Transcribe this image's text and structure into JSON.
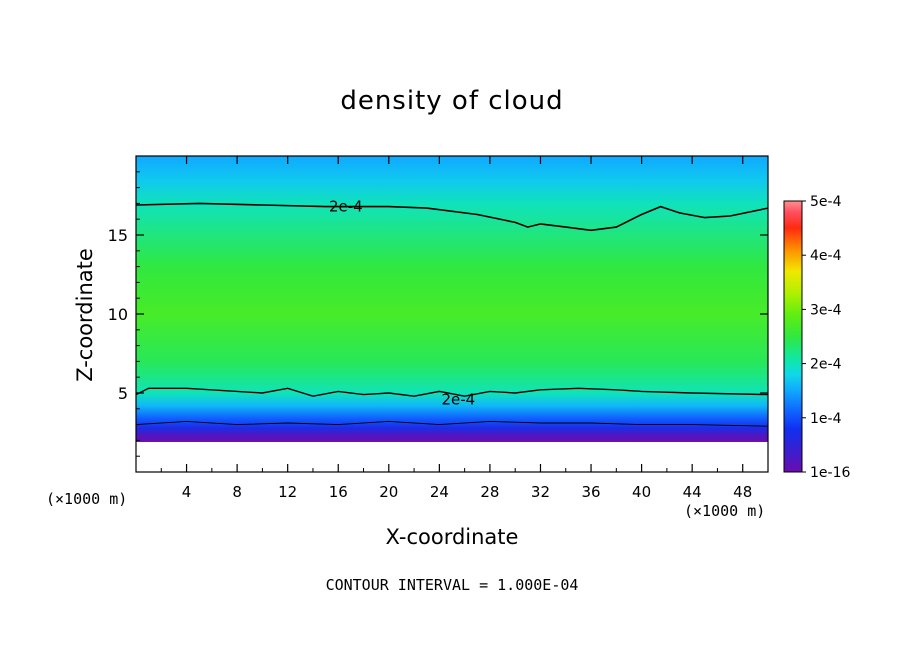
{
  "chart_data": {
    "type": "heatmap",
    "title": "density of cloud",
    "xlabel": "X-coordinate",
    "ylabel": "Z-coordinate",
    "x_unit": "(×1000 m)",
    "y_unit": "(×1000 m)",
    "xlim": [
      0,
      50
    ],
    "ylim": [
      0,
      20
    ],
    "x_ticks": [
      4,
      8,
      12,
      16,
      20,
      24,
      28,
      32,
      36,
      40,
      44,
      48
    ],
    "y_ticks": [
      5,
      10,
      15
    ],
    "colorbar": {
      "ticks": [
        "1e-16",
        "1e-4",
        "2e-4",
        "3e-4",
        "4e-4",
        "5e-4"
      ],
      "min": 0,
      "max": 0.0005
    },
    "contour_labels": [
      {
        "text": "2e-4",
        "x": 16.6,
        "z": 16.8
      },
      {
        "text": "2e-4",
        "x": 25.5,
        "z": 4.6
      }
    ],
    "upper_contour_2e4": [
      [
        0,
        16.9
      ],
      [
        5,
        17.0
      ],
      [
        10,
        16.9
      ],
      [
        15,
        16.8
      ],
      [
        20,
        16.8
      ],
      [
        23,
        16.7
      ],
      [
        27,
        16.3
      ],
      [
        30,
        15.8
      ],
      [
        31,
        15.5
      ],
      [
        32,
        15.7
      ],
      [
        34,
        15.5
      ],
      [
        36,
        15.3
      ],
      [
        38,
        15.5
      ],
      [
        40,
        16.3
      ],
      [
        41.5,
        16.8
      ],
      [
        43,
        16.4
      ],
      [
        45,
        16.1
      ],
      [
        47,
        16.2
      ],
      [
        50,
        16.7
      ]
    ],
    "lower_contour_2e4": [
      [
        0,
        4.9
      ],
      [
        1,
        5.3
      ],
      [
        4,
        5.3
      ],
      [
        8,
        5.1
      ],
      [
        10,
        5.0
      ],
      [
        12,
        5.3
      ],
      [
        14,
        4.8
      ],
      [
        16,
        5.1
      ],
      [
        18,
        4.9
      ],
      [
        20,
        5.0
      ],
      [
        22,
        4.8
      ],
      [
        24,
        5.1
      ],
      [
        26,
        4.8
      ],
      [
        28,
        5.1
      ],
      [
        30,
        5.0
      ],
      [
        32,
        5.2
      ],
      [
        35,
        5.3
      ],
      [
        38,
        5.2
      ],
      [
        40,
        5.1
      ],
      [
        44,
        5.0
      ],
      [
        50,
        4.9
      ]
    ],
    "lower_contour_1e4": [
      [
        0,
        3.0
      ],
      [
        4,
        3.2
      ],
      [
        8,
        3.0
      ],
      [
        12,
        3.1
      ],
      [
        16,
        3.0
      ],
      [
        20,
        3.2
      ],
      [
        24,
        3.0
      ],
      [
        28,
        3.2
      ],
      [
        32,
        3.1
      ],
      [
        36,
        3.1
      ],
      [
        40,
        3.0
      ],
      [
        44,
        3.0
      ],
      [
        50,
        2.9
      ]
    ],
    "field_profile": [
      {
        "z": 1.9,
        "v": 0
      },
      {
        "z": 2.3,
        "v": 2e-05
      },
      {
        "z": 2.8,
        "v": 7e-05
      },
      {
        "z": 3.4,
        "v": 0.00011
      },
      {
        "z": 4.2,
        "v": 0.00016
      },
      {
        "z": 5.0,
        "v": 0.0002
      },
      {
        "z": 7.0,
        "v": 0.00024
      },
      {
        "z": 10.0,
        "v": 0.00027
      },
      {
        "z": 13.0,
        "v": 0.00025
      },
      {
        "z": 16.9,
        "v": 0.0002
      },
      {
        "z": 18.5,
        "v": 0.00017
      },
      {
        "z": 20.0,
        "v": 0.00015
      }
    ]
  }
}
